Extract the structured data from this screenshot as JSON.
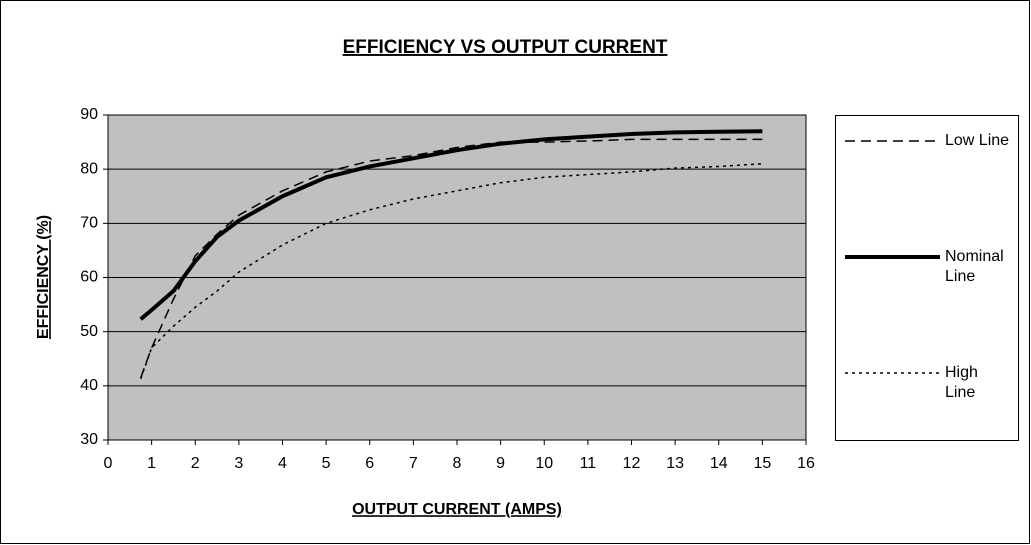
{
  "chart_data": {
    "type": "line",
    "title": "EFFICIENCY VS OUTPUT CURRENT",
    "x_label": "OUTPUT CURRENT (AMPS)",
    "y_label": "EFFICIENCY (%)",
    "x": [
      0.75,
      1,
      1.5,
      2,
      2.5,
      3,
      4,
      5,
      6,
      7,
      8,
      9,
      10,
      11,
      12,
      13,
      14,
      15
    ],
    "series": [
      {
        "name": "Low Line",
        "color": "#000000",
        "values": [
          41.5,
          47,
          56,
          64,
          68,
          71.5,
          76,
          79.5,
          81.5,
          82.5,
          84,
          85,
          85,
          85.2,
          85.5,
          85.5,
          85.5,
          85.5
        ]
      },
      {
        "name": "Nominal Line",
        "color": "#000000",
        "values": [
          52.3,
          54,
          57.5,
          63,
          67.5,
          70.5,
          75,
          78.5,
          80.5,
          82,
          83.5,
          84.7,
          85.5,
          86,
          86.5,
          86.8,
          86.9,
          87
        ]
      },
      {
        "name": "High Line",
        "color": "#000000",
        "values": [
          41.3,
          47,
          51,
          54.5,
          57.5,
          61,
          66,
          70,
          72.5,
          74.5,
          76,
          77.5,
          78.5,
          79,
          79.5,
          80.2,
          80.5,
          81
        ]
      }
    ],
    "xlim": [
      0,
      16
    ],
    "xticks": [
      0,
      1,
      2,
      3,
      4,
      5,
      6,
      7,
      8,
      9,
      10,
      11,
      12,
      13,
      14,
      15,
      16
    ],
    "ylim": [
      30,
      90
    ],
    "yticks": [
      30,
      40,
      50,
      60,
      70,
      80,
      90
    ],
    "grid": true,
    "plot_background": "#c0c0c0",
    "legend": "right"
  }
}
